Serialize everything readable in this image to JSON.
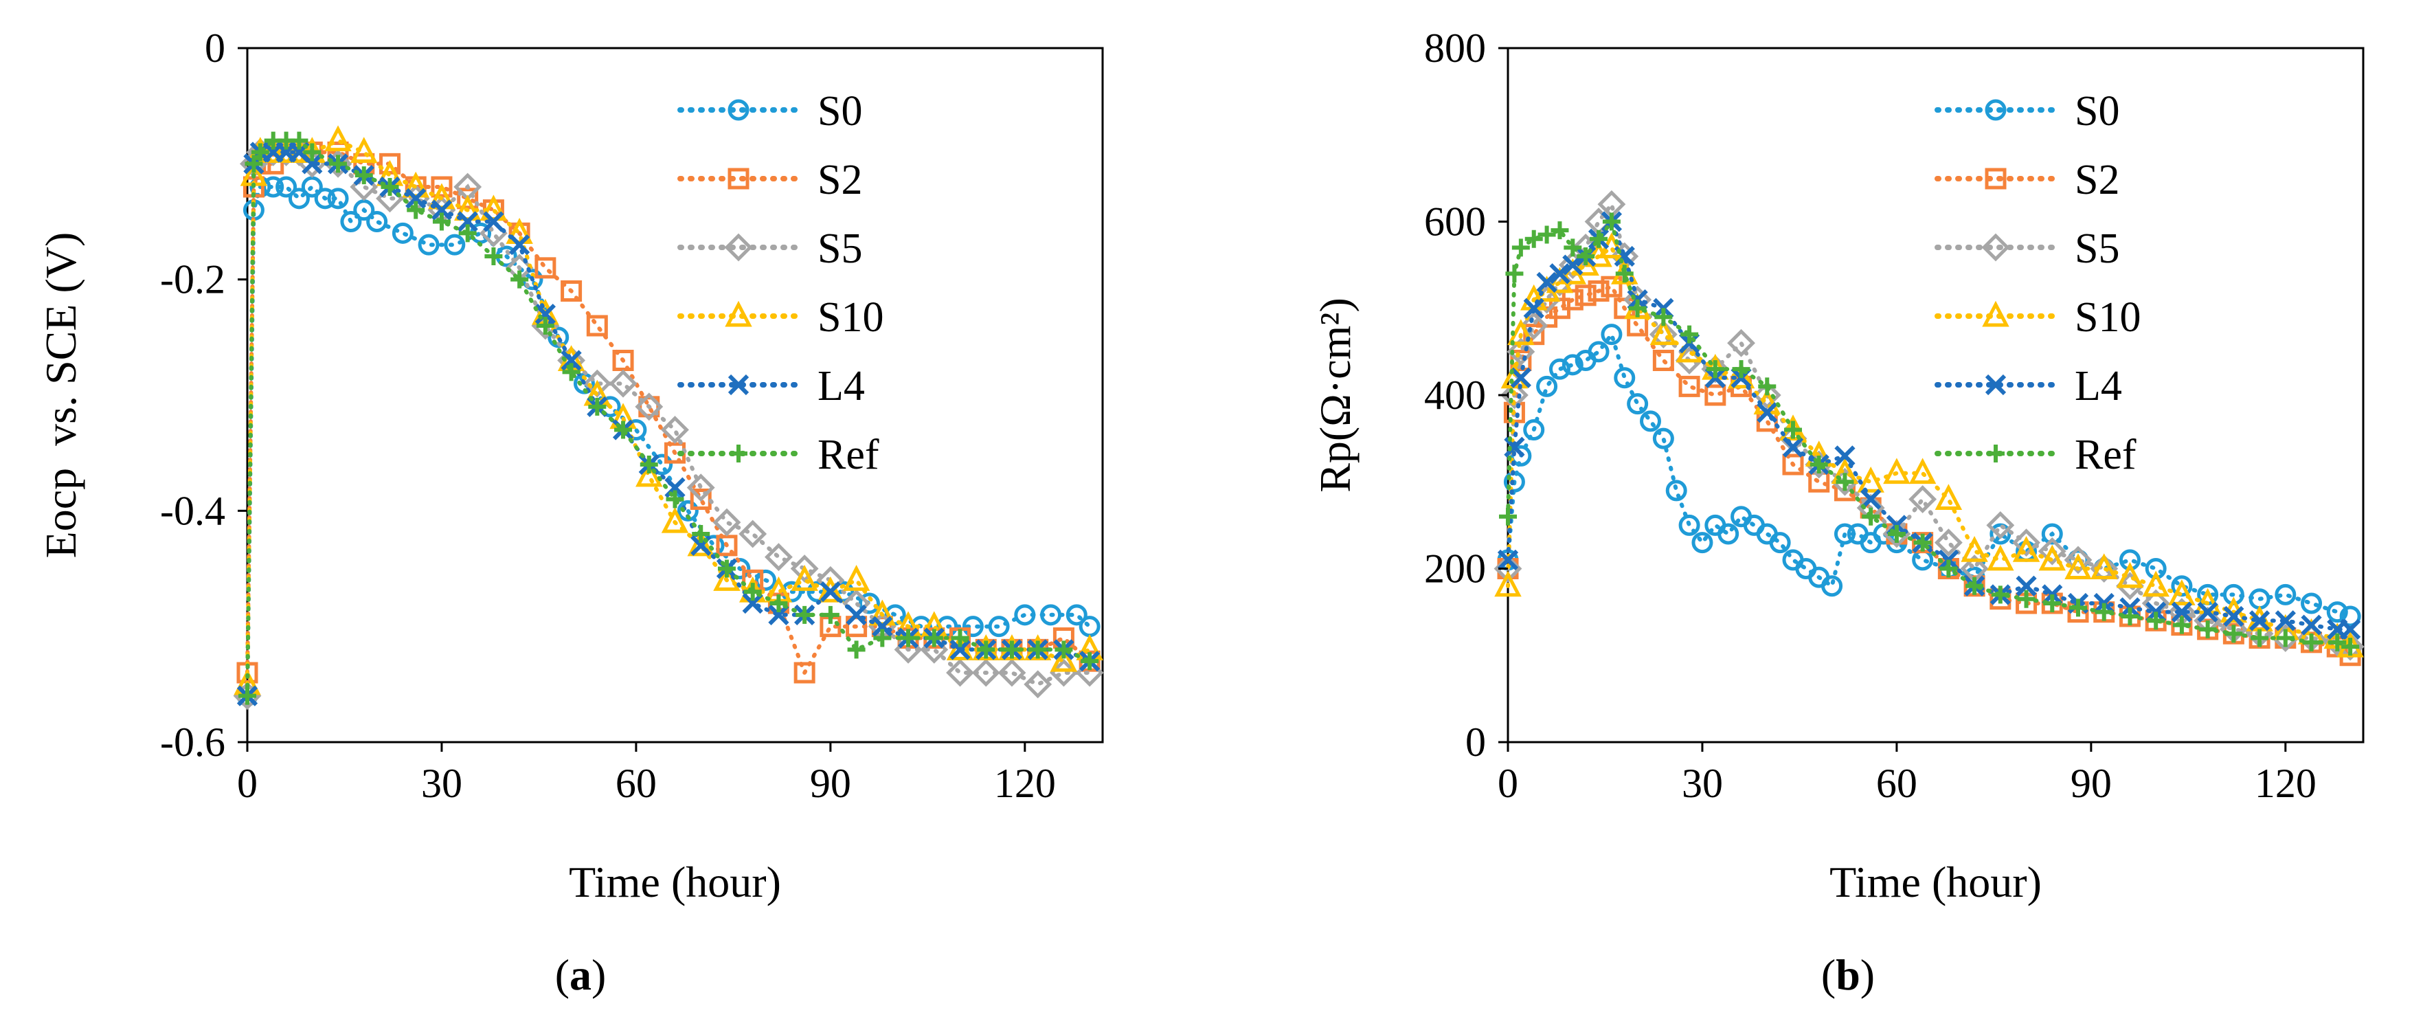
{
  "figure": {
    "panels": [
      {
        "caption_open": "(",
        "caption_letter": "a",
        "caption_close": ")"
      },
      {
        "caption_open": "(",
        "caption_letter": "b",
        "caption_close": ")"
      }
    ]
  },
  "colors": {
    "S0": "#1f9bd7",
    "S2": "#f5823a",
    "S5": "#a6a6a6",
    "S10": "#ffc000",
    "L4": "#1f6fbf",
    "Ref": "#4caf3a"
  },
  "chart_data": [
    {
      "type": "scatter",
      "xlabel": "Time (hour)",
      "ylabel": "Eocp  vs. SCE (V)",
      "xlim": [
        0,
        132
      ],
      "ylim": [
        -0.6,
        0
      ],
      "xticks": [
        "0",
        "30",
        "60",
        "90",
        "120"
      ],
      "yticks": [
        "0",
        "-0.2",
        "-0.4",
        "-0.6"
      ],
      "grid": false,
      "legend": "top-right",
      "series": [
        {
          "name": "S0",
          "marker": "circle",
          "x": [
            0,
            1,
            2,
            4,
            6,
            8,
            10,
            12,
            14,
            16,
            18,
            20,
            24,
            28,
            32,
            36,
            40,
            44,
            48,
            52,
            56,
            60,
            64,
            68,
            72,
            76,
            80,
            84,
            88,
            92,
            96,
            100,
            104,
            108,
            112,
            116,
            120,
            124,
            128,
            130
          ],
          "y": [
            -0.56,
            -0.14,
            -0.12,
            -0.12,
            -0.12,
            -0.13,
            -0.12,
            -0.13,
            -0.13,
            -0.15,
            -0.14,
            -0.15,
            -0.16,
            -0.17,
            -0.17,
            -0.16,
            -0.18,
            -0.2,
            -0.25,
            -0.29,
            -0.31,
            -0.33,
            -0.36,
            -0.4,
            -0.43,
            -0.45,
            -0.46,
            -0.47,
            -0.47,
            -0.47,
            -0.48,
            -0.49,
            -0.5,
            -0.5,
            -0.5,
            -0.5,
            -0.49,
            -0.49,
            -0.49,
            -0.5
          ]
        },
        {
          "name": "S2",
          "marker": "square",
          "x": [
            0,
            1,
            2,
            4,
            6,
            8,
            10,
            14,
            18,
            22,
            26,
            30,
            34,
            38,
            42,
            46,
            50,
            54,
            58,
            62,
            66,
            70,
            74,
            78,
            82,
            86,
            90,
            94,
            98,
            102,
            106,
            110,
            114,
            118,
            122,
            126,
            130
          ],
          "y": [
            -0.54,
            -0.12,
            -0.1,
            -0.1,
            -0.09,
            -0.09,
            -0.09,
            -0.09,
            -0.1,
            -0.1,
            -0.12,
            -0.12,
            -0.13,
            -0.14,
            -0.16,
            -0.19,
            -0.21,
            -0.24,
            -0.27,
            -0.31,
            -0.35,
            -0.39,
            -0.43,
            -0.46,
            -0.48,
            -0.54,
            -0.5,
            -0.5,
            -0.5,
            -0.51,
            -0.51,
            -0.51,
            -0.52,
            -0.52,
            -0.52,
            -0.51,
            -0.53
          ]
        },
        {
          "name": "S5",
          "marker": "diamond",
          "x": [
            0,
            1,
            2,
            4,
            6,
            8,
            10,
            14,
            18,
            22,
            26,
            30,
            34,
            38,
            42,
            46,
            50,
            54,
            58,
            62,
            66,
            70,
            74,
            78,
            82,
            86,
            90,
            94,
            98,
            102,
            106,
            110,
            114,
            118,
            122,
            126,
            130
          ],
          "y": [
            -0.56,
            -0.1,
            -0.09,
            -0.09,
            -0.09,
            -0.09,
            -0.1,
            -0.1,
            -0.12,
            -0.13,
            -0.13,
            -0.14,
            -0.12,
            -0.16,
            -0.19,
            -0.24,
            -0.27,
            -0.29,
            -0.29,
            -0.31,
            -0.33,
            -0.38,
            -0.41,
            -0.42,
            -0.44,
            -0.45,
            -0.46,
            -0.48,
            -0.5,
            -0.52,
            -0.52,
            -0.54,
            -0.54,
            -0.54,
            -0.55,
            -0.54,
            -0.54
          ]
        },
        {
          "name": "S10",
          "marker": "triangle",
          "x": [
            0,
            1,
            2,
            4,
            6,
            8,
            10,
            14,
            18,
            22,
            26,
            30,
            34,
            38,
            42,
            46,
            50,
            54,
            58,
            62,
            66,
            70,
            74,
            78,
            82,
            86,
            90,
            94,
            98,
            102,
            106,
            110,
            114,
            118,
            122,
            126,
            130
          ],
          "y": [
            -0.55,
            -0.11,
            -0.09,
            -0.09,
            -0.09,
            -0.09,
            -0.09,
            -0.08,
            -0.09,
            -0.11,
            -0.12,
            -0.13,
            -0.14,
            -0.14,
            -0.16,
            -0.23,
            -0.27,
            -0.3,
            -0.32,
            -0.37,
            -0.41,
            -0.43,
            -0.46,
            -0.47,
            -0.47,
            -0.46,
            -0.47,
            -0.46,
            -0.49,
            -0.5,
            -0.5,
            -0.52,
            -0.52,
            -0.52,
            -0.52,
            -0.53,
            -0.52
          ]
        },
        {
          "name": "L4",
          "marker": "x",
          "x": [
            0,
            1,
            2,
            4,
            6,
            8,
            10,
            14,
            18,
            22,
            26,
            30,
            34,
            38,
            42,
            46,
            50,
            54,
            58,
            62,
            66,
            70,
            74,
            78,
            82,
            86,
            90,
            94,
            98,
            102,
            106,
            110,
            114,
            118,
            122,
            126,
            130
          ],
          "y": [
            -0.56,
            -0.1,
            -0.09,
            -0.09,
            -0.09,
            -0.09,
            -0.1,
            -0.1,
            -0.11,
            -0.12,
            -0.13,
            -0.14,
            -0.15,
            -0.15,
            -0.17,
            -0.23,
            -0.27,
            -0.31,
            -0.33,
            -0.36,
            -0.38,
            -0.43,
            -0.45,
            -0.48,
            -0.49,
            -0.49,
            -0.47,
            -0.49,
            -0.5,
            -0.51,
            -0.51,
            -0.52,
            -0.52,
            -0.52,
            -0.52,
            -0.52,
            -0.53
          ]
        },
        {
          "name": "Ref",
          "marker": "plus",
          "x": [
            0,
            1,
            2,
            4,
            6,
            8,
            10,
            14,
            18,
            22,
            26,
            30,
            34,
            38,
            42,
            46,
            50,
            54,
            58,
            62,
            66,
            70,
            74,
            78,
            82,
            86,
            90,
            94,
            98,
            102,
            106,
            110,
            114,
            118,
            122,
            126,
            130
          ],
          "y": [
            -0.56,
            -0.1,
            -0.09,
            -0.08,
            -0.08,
            -0.08,
            -0.09,
            -0.1,
            -0.11,
            -0.12,
            -0.14,
            -0.15,
            -0.16,
            -0.18,
            -0.2,
            -0.24,
            -0.28,
            -0.31,
            -0.33,
            -0.36,
            -0.39,
            -0.42,
            -0.45,
            -0.47,
            -0.48,
            -0.49,
            -0.49,
            -0.52,
            -0.51,
            -0.51,
            -0.51,
            -0.51,
            -0.52,
            -0.52,
            -0.52,
            -0.52,
            -0.53
          ]
        }
      ]
    },
    {
      "type": "scatter",
      "xlabel": "Time (hour)",
      "ylabel": "Rp(Ω·cm²)",
      "xlim": [
        0,
        132
      ],
      "ylim": [
        0,
        800
      ],
      "xticks": [
        "0",
        "30",
        "60",
        "90",
        "120"
      ],
      "yticks": [
        "800",
        "600",
        "400",
        "200",
        "0"
      ],
      "grid": false,
      "legend": "top-right",
      "series": [
        {
          "name": "S0",
          "marker": "circle",
          "x": [
            0,
            1,
            2,
            4,
            6,
            8,
            10,
            12,
            14,
            16,
            18,
            20,
            22,
            24,
            26,
            28,
            30,
            32,
            34,
            36,
            38,
            40,
            42,
            44,
            46,
            48,
            50,
            52,
            54,
            56,
            58,
            60,
            64,
            68,
            72,
            76,
            80,
            84,
            88,
            92,
            96,
            100,
            104,
            108,
            112,
            116,
            120,
            124,
            128,
            130
          ],
          "y": [
            210,
            300,
            330,
            360,
            410,
            430,
            435,
            440,
            450,
            470,
            420,
            390,
            370,
            350,
            290,
            250,
            230,
            250,
            240,
            260,
            250,
            240,
            230,
            210,
            200,
            190,
            180,
            240,
            240,
            230,
            240,
            230,
            210,
            200,
            190,
            240,
            220,
            240,
            210,
            200,
            210,
            200,
            180,
            170,
            170,
            165,
            170,
            160,
            150,
            145
          ]
        },
        {
          "name": "S2",
          "marker": "square",
          "x": [
            0,
            1,
            2,
            4,
            6,
            8,
            10,
            12,
            14,
            16,
            18,
            20,
            24,
            28,
            32,
            36,
            40,
            44,
            48,
            52,
            56,
            60,
            64,
            68,
            72,
            76,
            80,
            84,
            88,
            92,
            96,
            100,
            104,
            108,
            112,
            116,
            120,
            124,
            128,
            130
          ],
          "y": [
            200,
            380,
            440,
            470,
            490,
            500,
            510,
            515,
            520,
            525,
            500,
            480,
            440,
            410,
            400,
            410,
            370,
            320,
            300,
            290,
            270,
            240,
            230,
            200,
            180,
            165,
            160,
            160,
            150,
            150,
            145,
            140,
            135,
            130,
            125,
            120,
            120,
            115,
            110,
            100
          ]
        },
        {
          "name": "S5",
          "marker": "diamond",
          "x": [
            0,
            1,
            2,
            4,
            6,
            8,
            10,
            12,
            14,
            16,
            18,
            20,
            24,
            28,
            32,
            36,
            40,
            44,
            48,
            52,
            56,
            60,
            64,
            68,
            72,
            76,
            80,
            84,
            88,
            92,
            96,
            100,
            104,
            108,
            112,
            116,
            120,
            124,
            128,
            130
          ],
          "y": [
            200,
            400,
            450,
            480,
            510,
            530,
            550,
            570,
            600,
            620,
            560,
            510,
            470,
            440,
            430,
            460,
            400,
            350,
            320,
            300,
            270,
            240,
            280,
            230,
            200,
            250,
            230,
            220,
            210,
            200,
            180,
            160,
            150,
            140,
            130,
            125,
            120,
            120,
            115,
            110
          ]
        },
        {
          "name": "S10",
          "marker": "triangle",
          "x": [
            0,
            1,
            2,
            4,
            6,
            8,
            10,
            12,
            14,
            16,
            18,
            20,
            24,
            28,
            32,
            36,
            40,
            44,
            48,
            52,
            56,
            60,
            64,
            68,
            72,
            76,
            80,
            84,
            88,
            92,
            96,
            100,
            104,
            108,
            112,
            116,
            120,
            124,
            128,
            130
          ],
          "y": [
            180,
            420,
            470,
            510,
            520,
            530,
            540,
            550,
            560,
            570,
            540,
            500,
            470,
            450,
            430,
            420,
            390,
            360,
            330,
            310,
            300,
            310,
            310,
            280,
            220,
            210,
            220,
            210,
            200,
            200,
            190,
            180,
            170,
            160,
            150,
            140,
            130,
            125,
            120,
            110
          ]
        },
        {
          "name": "L4",
          "marker": "x",
          "x": [
            0,
            1,
            2,
            4,
            6,
            8,
            10,
            12,
            14,
            16,
            18,
            20,
            24,
            28,
            32,
            36,
            40,
            44,
            48,
            52,
            56,
            60,
            64,
            68,
            72,
            76,
            80,
            84,
            88,
            92,
            96,
            100,
            104,
            108,
            112,
            116,
            120,
            124,
            128,
            130
          ],
          "y": [
            210,
            340,
            420,
            500,
            530,
            540,
            550,
            560,
            580,
            600,
            560,
            510,
            500,
            460,
            420,
            420,
            380,
            340,
            320,
            330,
            280,
            250,
            230,
            210,
            180,
            170,
            180,
            170,
            160,
            160,
            155,
            150,
            150,
            150,
            145,
            140,
            140,
            135,
            130,
            130
          ]
        },
        {
          "name": "Ref",
          "marker": "plus",
          "x": [
            0,
            1,
            2,
            4,
            6,
            8,
            10,
            12,
            14,
            16,
            18,
            20,
            24,
            28,
            32,
            36,
            40,
            44,
            48,
            52,
            56,
            60,
            64,
            68,
            72,
            76,
            80,
            84,
            88,
            92,
            96,
            100,
            104,
            108,
            112,
            116,
            120,
            124,
            128,
            130
          ],
          "y": [
            260,
            540,
            570,
            580,
            585,
            590,
            570,
            560,
            580,
            600,
            540,
            500,
            490,
            470,
            430,
            430,
            410,
            360,
            320,
            300,
            260,
            240,
            230,
            200,
            180,
            170,
            165,
            160,
            155,
            150,
            145,
            140,
            135,
            130,
            125,
            120,
            120,
            115,
            115,
            110
          ]
        }
      ]
    }
  ]
}
